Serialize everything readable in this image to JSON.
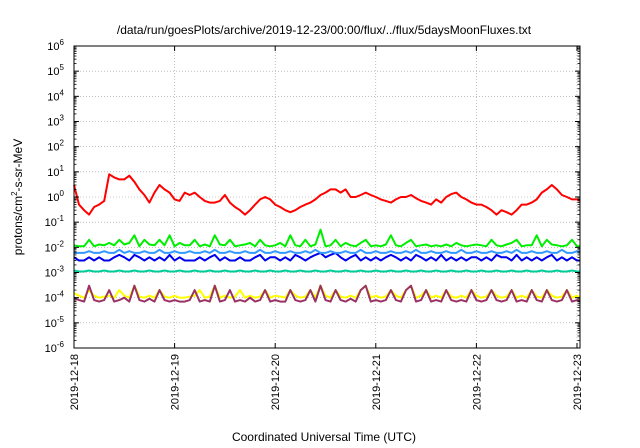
{
  "chart_data": {
    "type": "line",
    "title": "/data/run/goesPlots/archive/2019-12-23/00:00/flux/../flux/5daysMoonFluxes.txt",
    "xlabel": "Coordinated Universal Time (UTC)",
    "ylabel": {
      "base": "protons/cm",
      "sup": "2",
      "rest": "-s-sr-MeV"
    },
    "yscale": "log",
    "ylim": [
      1e-06,
      1000000.0
    ],
    "yticks": [
      {
        "base": "10",
        "exp": "-6",
        "value": -6
      },
      {
        "base": "10",
        "exp": "-5",
        "value": -5
      },
      {
        "base": "10",
        "exp": "-4",
        "value": -4
      },
      {
        "base": "10",
        "exp": "-3",
        "value": -3
      },
      {
        "base": "10",
        "exp": "-2",
        "value": -2
      },
      {
        "base": "10",
        "exp": "-1",
        "value": -1
      },
      {
        "base": "10",
        "exp": "0",
        "value": 0
      },
      {
        "base": "10",
        "exp": "1",
        "value": 1
      },
      {
        "base": "10",
        "exp": "2",
        "value": 2
      },
      {
        "base": "10",
        "exp": "3",
        "value": 3
      },
      {
        "base": "10",
        "exp": "4",
        "value": 4
      },
      {
        "base": "10",
        "exp": "5",
        "value": 5
      },
      {
        "base": "10",
        "exp": "6",
        "value": 6
      }
    ],
    "xlim": [
      0,
      5.03
    ],
    "xticks": [
      {
        "label": "2019-12-18",
        "value": 0
      },
      {
        "label": "2019-12-19",
        "value": 1
      },
      {
        "label": "2019-12-20",
        "value": 2
      },
      {
        "label": "2019-12-21",
        "value": 3
      },
      {
        "label": "2019-12-22",
        "value": 4
      },
      {
        "label": "2019-12-23",
        "value": 5
      }
    ],
    "grid": true,
    "legend": "none",
    "x": [
      0.0,
      0.05,
      0.1,
      0.15,
      0.2,
      0.25,
      0.3,
      0.35,
      0.4,
      0.45,
      0.5,
      0.55,
      0.6,
      0.65,
      0.7,
      0.75,
      0.8,
      0.85,
      0.9,
      0.95,
      1.0,
      1.05,
      1.1,
      1.15,
      1.2,
      1.25,
      1.3,
      1.35,
      1.4,
      1.45,
      1.5,
      1.55,
      1.6,
      1.65,
      1.7,
      1.75,
      1.8,
      1.85,
      1.9,
      1.95,
      2.0,
      2.05,
      2.1,
      2.15,
      2.2,
      2.25,
      2.3,
      2.35,
      2.4,
      2.45,
      2.5,
      2.55,
      2.6,
      2.65,
      2.7,
      2.75,
      2.8,
      2.85,
      2.9,
      2.95,
      3.0,
      3.05,
      3.1,
      3.15,
      3.2,
      3.25,
      3.3,
      3.35,
      3.4,
      3.45,
      3.5,
      3.55,
      3.6,
      3.65,
      3.7,
      3.75,
      3.8,
      3.85,
      3.9,
      3.95,
      4.0,
      4.05,
      4.1,
      4.15,
      4.2,
      4.25,
      4.3,
      4.35,
      4.4,
      4.45,
      4.5,
      4.55,
      4.6,
      4.65,
      4.7,
      4.75,
      4.8,
      4.85,
      4.9,
      4.95,
      5.0,
      5.03
    ],
    "series": [
      {
        "color": "#ff0000",
        "values": [
          3,
          0.5,
          0.3,
          0.2,
          0.4,
          0.5,
          0.7,
          8,
          6,
          5,
          5,
          7,
          4,
          2,
          1.2,
          0.6,
          1.5,
          3,
          2,
          1.5,
          0.8,
          0.7,
          1.5,
          1.2,
          1.5,
          1,
          0.7,
          0.6,
          0.6,
          0.7,
          1.2,
          0.6,
          0.4,
          0.3,
          0.2,
          0.3,
          0.5,
          0.8,
          1,
          0.8,
          0.5,
          0.4,
          0.3,
          0.25,
          0.3,
          0.4,
          0.5,
          0.6,
          0.8,
          1.2,
          1.5,
          2,
          2,
          1.5,
          2,
          1,
          1,
          1.2,
          1.5,
          1.2,
          1,
          0.8,
          0.7,
          0.6,
          0.8,
          1,
          1,
          1.2,
          0.9,
          0.7,
          0.6,
          0.5,
          0.8,
          0.6,
          1,
          1.3,
          1.5,
          1,
          0.8,
          0.6,
          0.5,
          0.5,
          0.4,
          0.3,
          0.2,
          0.3,
          0.25,
          0.2,
          0.3,
          0.5,
          0.5,
          0.6,
          0.8,
          1.5,
          2,
          3,
          2,
          1.2,
          1,
          0.8,
          0.8,
          0.7
        ]
      },
      {
        "color": "#00ee00",
        "values": [
          0.012,
          0.011,
          0.011,
          0.02,
          0.011,
          0.013,
          0.012,
          0.015,
          0.012,
          0.02,
          0.013,
          0.015,
          0.03,
          0.011,
          0.02,
          0.013,
          0.012,
          0.02,
          0.012,
          0.03,
          0.011,
          0.015,
          0.012,
          0.012,
          0.02,
          0.011,
          0.013,
          0.011,
          0.03,
          0.013,
          0.012,
          0.02,
          0.011,
          0.012,
          0.013,
          0.015,
          0.011,
          0.02,
          0.012,
          0.011,
          0.012,
          0.015,
          0.011,
          0.03,
          0.012,
          0.011,
          0.02,
          0.011,
          0.013,
          0.05,
          0.011,
          0.012,
          0.02,
          0.011,
          0.015,
          0.012,
          0.011,
          0.015,
          0.02,
          0.011,
          0.012,
          0.011,
          0.013,
          0.03,
          0.012,
          0.011,
          0.015,
          0.02,
          0.011,
          0.012,
          0.013,
          0.011,
          0.012,
          0.011,
          0.013,
          0.011,
          0.015,
          0.012,
          0.011,
          0.012,
          0.013,
          0.012,
          0.011,
          0.02,
          0.012,
          0.011,
          0.013,
          0.015,
          0.02,
          0.011,
          0.012,
          0.012,
          0.03,
          0.011,
          0.02,
          0.013,
          0.012,
          0.011,
          0.012,
          0.02,
          0.011,
          0.011
        ]
      },
      {
        "color": "#0000ee",
        "values": [
          0.004,
          0.003,
          0.003,
          0.004,
          0.003,
          0.004,
          0.003,
          0.003,
          0.004,
          0.005,
          0.004,
          0.003,
          0.005,
          0.004,
          0.003,
          0.004,
          0.003,
          0.004,
          0.003,
          0.005,
          0.003,
          0.004,
          0.003,
          0.003,
          0.003,
          0.004,
          0.003,
          0.004,
          0.005,
          0.003,
          0.004,
          0.003,
          0.003,
          0.004,
          0.003,
          0.003,
          0.004,
          0.005,
          0.003,
          0.004,
          0.004,
          0.003,
          0.004,
          0.003,
          0.005,
          0.004,
          0.003,
          0.004,
          0.005,
          0.006,
          0.004,
          0.005,
          0.006,
          0.004,
          0.003,
          0.004,
          0.005,
          0.003,
          0.004,
          0.003,
          0.004,
          0.003,
          0.004,
          0.005,
          0.004,
          0.003,
          0.004,
          0.003,
          0.005,
          0.004,
          0.003,
          0.004,
          0.003,
          0.005,
          0.003,
          0.004,
          0.003,
          0.004,
          0.003,
          0.004,
          0.004,
          0.003,
          0.004,
          0.003,
          0.005,
          0.004,
          0.004,
          0.003,
          0.005,
          0.003,
          0.004,
          0.003,
          0.004,
          0.003,
          0.004,
          0.005,
          0.003,
          0.004,
          0.003,
          0.004,
          0.003,
          0.003
        ]
      },
      {
        "color": "#3399ff",
        "values": [
          0.006,
          0.006,
          0.006,
          0.007,
          0.006,
          0.006,
          0.007,
          0.006,
          0.006,
          0.008,
          0.006,
          0.007,
          0.006,
          0.006,
          0.007,
          0.006,
          0.006,
          0.008,
          0.006,
          0.006,
          0.007,
          0.006,
          0.006,
          0.007,
          0.006,
          0.006,
          0.007,
          0.006,
          0.008,
          0.006,
          0.006,
          0.007,
          0.006,
          0.006,
          0.007,
          0.006,
          0.006,
          0.008,
          0.006,
          0.006,
          0.007,
          0.006,
          0.006,
          0.007,
          0.006,
          0.006,
          0.007,
          0.006,
          0.008,
          0.006,
          0.006,
          0.007,
          0.006,
          0.006,
          0.007,
          0.006,
          0.006,
          0.008,
          0.006,
          0.006,
          0.007,
          0.006,
          0.006,
          0.007,
          0.006,
          0.006,
          0.007,
          0.006,
          0.008,
          0.006,
          0.006,
          0.007,
          0.006,
          0.006,
          0.007,
          0.006,
          0.006,
          0.008,
          0.006,
          0.006,
          0.007,
          0.006,
          0.006,
          0.007,
          0.006,
          0.006,
          0.007,
          0.006,
          0.008,
          0.006,
          0.006,
          0.007,
          0.006,
          0.006,
          0.007,
          0.006,
          0.006,
          0.008,
          0.006,
          0.006,
          0.007,
          0.006
        ]
      },
      {
        "color": "#00cc99",
        "values": [
          0.0012,
          0.0011,
          0.0011,
          0.0012,
          0.0011,
          0.0011,
          0.0012,
          0.0011,
          0.0011,
          0.0012,
          0.0011,
          0.0011,
          0.0012,
          0.0011,
          0.0011,
          0.0012,
          0.0011,
          0.0011,
          0.0012,
          0.0011,
          0.0011,
          0.0012,
          0.0011,
          0.0011,
          0.0012,
          0.0011,
          0.0011,
          0.0012,
          0.0011,
          0.0011,
          0.0012,
          0.0011,
          0.0011,
          0.0012,
          0.0011,
          0.0011,
          0.0012,
          0.0011,
          0.0011,
          0.0012,
          0.0011,
          0.0011,
          0.0012,
          0.0011,
          0.0011,
          0.0012,
          0.0011,
          0.0011,
          0.0012,
          0.0011,
          0.0011,
          0.0012,
          0.0011,
          0.0011,
          0.0012,
          0.0011,
          0.0011,
          0.0012,
          0.0011,
          0.0011,
          0.0012,
          0.0011,
          0.0011,
          0.0012,
          0.0011,
          0.0011,
          0.0012,
          0.0011,
          0.0011,
          0.0012,
          0.0011,
          0.0011,
          0.0012,
          0.0011,
          0.0011,
          0.0012,
          0.0011,
          0.0011,
          0.0012,
          0.0011,
          0.0011,
          0.0012,
          0.0011,
          0.0011,
          0.0012,
          0.0011,
          0.0011,
          0.0012,
          0.0011,
          0.0011,
          0.0012,
          0.0011,
          0.0011,
          0.0012,
          0.0011,
          0.0011,
          0.0012,
          0.0011,
          0.0011,
          0.0012,
          0.0011,
          0.0011
        ]
      },
      {
        "color": "#ffff00",
        "values": [
          0.00015,
          0.00012,
          0.0001,
          0.0002,
          0.00012,
          0.0001,
          0.00011,
          0.00012,
          0.0001,
          0.0002,
          0.00012,
          0.0001,
          0.0003,
          0.00011,
          0.0001,
          0.00012,
          0.0001,
          0.0002,
          0.00011,
          0.0001,
          0.00012,
          0.0001,
          0.0001,
          0.00011,
          0.00012,
          0.0002,
          0.0001,
          0.00011,
          0.0003,
          0.0001,
          0.00012,
          0.0001,
          0.00011,
          0.0002,
          0.0001,
          0.00012,
          0.0001,
          0.00011,
          0.0002,
          0.0001,
          0.00012,
          0.00011,
          0.0001,
          0.0002,
          0.00012,
          0.0001,
          0.00011,
          0.0002,
          0.0001,
          0.0003,
          0.00012,
          0.0001,
          0.0002,
          0.00011,
          0.0001,
          0.00012,
          0.0001,
          0.0002,
          0.0003,
          0.0001,
          0.00012,
          0.0001,
          0.00011,
          0.0002,
          0.00012,
          0.0001,
          0.0002,
          0.0003,
          0.0001,
          0.00012,
          0.0002,
          0.0001,
          0.00012,
          0.0001,
          0.0002,
          0.00011,
          0.0001,
          0.00012,
          0.0001,
          0.0002,
          0.00012,
          0.0001,
          0.00011,
          0.0002,
          0.00012,
          0.0001,
          0.00011,
          0.0002,
          0.0001,
          0.00012,
          0.0001,
          0.0002,
          0.00011,
          0.0001,
          0.0002,
          0.00012,
          0.0001,
          0.00011,
          0.0002,
          0.0001,
          0.00012,
          0.0001
        ]
      },
      {
        "color": "#993366",
        "values": [
          0.0001,
          8e-05,
          7e-05,
          0.0003,
          8e-05,
          7e-05,
          8e-05,
          0.0002,
          7e-05,
          8e-05,
          0.0001,
          7e-05,
          0.0003,
          8e-05,
          7e-05,
          9e-05,
          7e-05,
          0.0002,
          8e-05,
          7e-05,
          8e-05,
          7e-05,
          7e-05,
          8e-05,
          0.0002,
          7e-05,
          8e-05,
          7e-05,
          0.0003,
          7e-05,
          8e-05,
          0.0002,
          7e-05,
          8e-05,
          7e-05,
          0.0001,
          7e-05,
          8e-05,
          0.0002,
          7e-05,
          8e-05,
          7e-05,
          7e-05,
          0.0002,
          8e-05,
          7e-05,
          8e-05,
          0.0002,
          7e-05,
          0.0003,
          8e-05,
          7e-05,
          0.0002,
          8e-05,
          7e-05,
          9e-05,
          7e-05,
          0.0002,
          0.0003,
          7e-05,
          8e-05,
          7e-05,
          8e-05,
          0.0002,
          8e-05,
          7e-05,
          0.0002,
          0.0003,
          7e-05,
          8e-05,
          0.0002,
          7e-05,
          8e-05,
          7e-05,
          0.0002,
          8e-05,
          7e-05,
          8e-05,
          7e-05,
          0.0002,
          8e-05,
          7e-05,
          8e-05,
          0.0002,
          8e-05,
          7e-05,
          8e-05,
          0.0002,
          7e-05,
          8e-05,
          7e-05,
          0.0002,
          8e-05,
          7e-05,
          0.0002,
          8e-05,
          7e-05,
          8e-05,
          0.0002,
          7e-05,
          8e-05,
          7e-05
        ]
      }
    ]
  }
}
